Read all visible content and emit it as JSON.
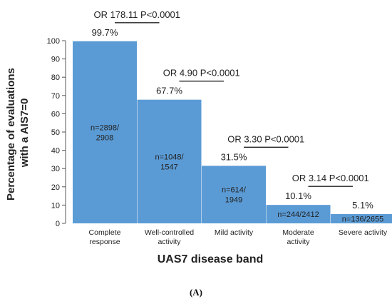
{
  "chart_data": {
    "type": "bar",
    "ylabel_line1": "Percentage of evaluations",
    "ylabel_line2": "with a AIS7=0",
    "xlabel": "UAS7 disease band",
    "panel_label": "(A)",
    "ylim": [
      0,
      100
    ],
    "yticks": [
      0,
      10,
      20,
      30,
      40,
      50,
      60,
      70,
      80,
      90,
      100
    ],
    "bar_color": "#5b9bd5",
    "categories": [
      [
        "Complete",
        "response"
      ],
      [
        "Well-controlled",
        "activity"
      ],
      [
        "Mild activity"
      ],
      [
        "Moderate",
        "activity"
      ],
      [
        "Severe activity"
      ]
    ],
    "values": [
      99.7,
      67.7,
      31.5,
      10.1,
      5.1
    ],
    "value_labels": [
      "99.7%",
      "67.7%",
      "31.5%",
      "10.1%",
      "5.1%"
    ],
    "n_labels": [
      [
        "n=2898/",
        "2908"
      ],
      [
        "n=1048/",
        "1547"
      ],
      [
        "n=614/",
        "1949"
      ],
      [
        "n=244/2412"
      ],
      [
        "n=136/2655"
      ]
    ],
    "comparisons": [
      {
        "label": "OR 178.11 P<0.0001",
        "from": 0,
        "to": 1
      },
      {
        "label": "OR 4.90 P<0.0001",
        "from": 1,
        "to": 2
      },
      {
        "label": "OR 3.30 P<0.0001",
        "from": 2,
        "to": 3
      },
      {
        "label": "OR 3.14 P<0.0001",
        "from": 3,
        "to": 4
      }
    ]
  }
}
